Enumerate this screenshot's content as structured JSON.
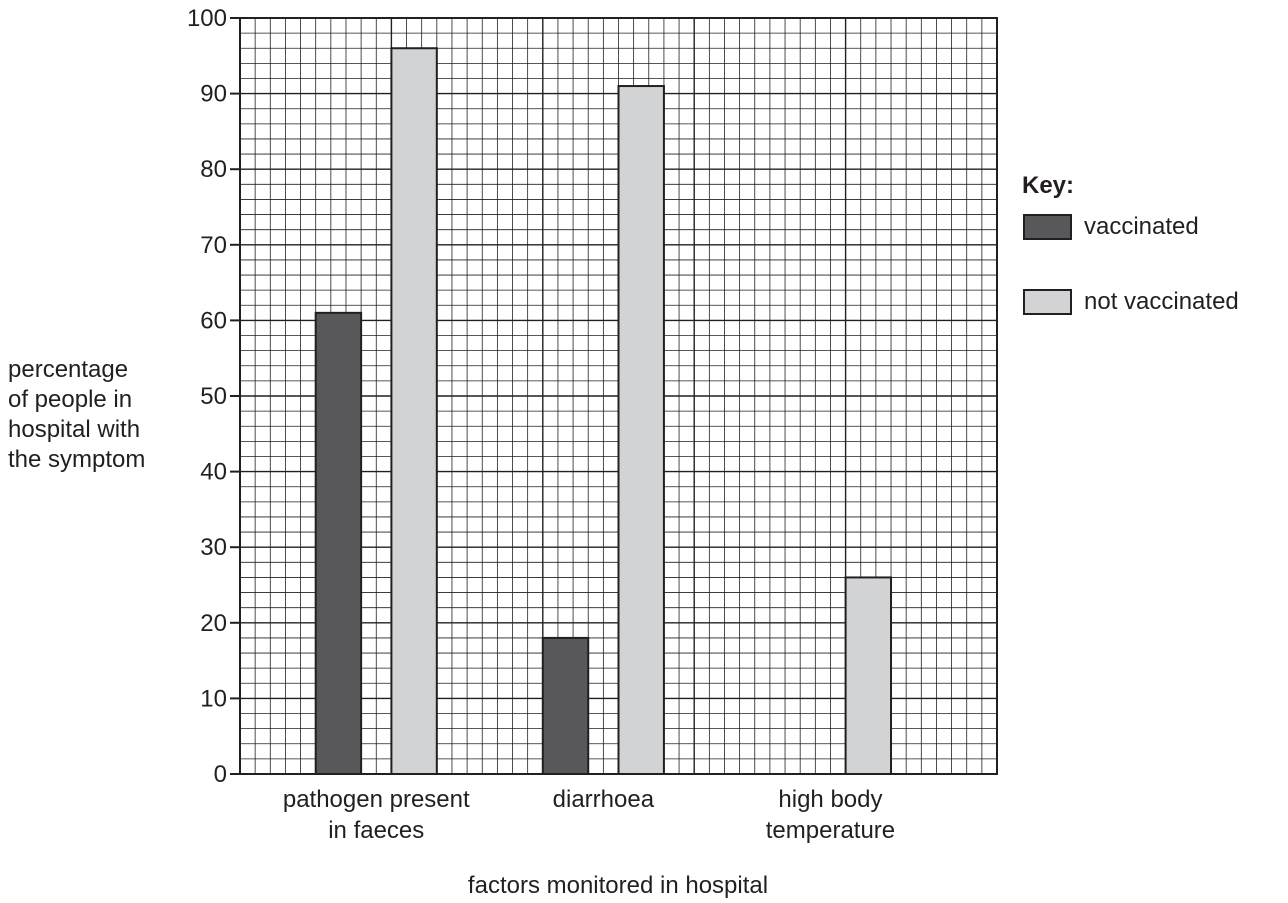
{
  "chart_data": {
    "type": "bar",
    "categories": [
      [
        "pathogen present",
        "in faeces"
      ],
      [
        "diarrhoea"
      ],
      [
        "high body",
        "temperature"
      ]
    ],
    "series": [
      {
        "name": "vaccinated",
        "values": [
          61,
          18,
          0
        ],
        "color": "#58585a"
      },
      {
        "name": "not vaccinated",
        "values": [
          96,
          91,
          26
        ],
        "color": "#d1d3d4"
      }
    ],
    "ylabel": [
      "percentage",
      "of people in",
      "hospital with",
      "the symptom"
    ],
    "xlabel": "factors monitored in hospital",
    "ylim": [
      0,
      100
    ],
    "yticks": [
      0,
      10,
      20,
      30,
      40,
      50,
      60,
      70,
      80,
      90,
      100
    ],
    "grid": true,
    "legend": {
      "title": "Key:",
      "placement": "right"
    }
  }
}
